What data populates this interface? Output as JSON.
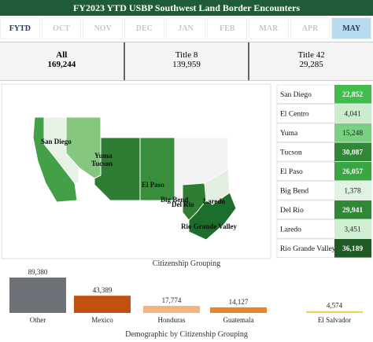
{
  "header": {
    "title": "FY2023 YTD USBP Southwest Land Border Encounters"
  },
  "tabs": [
    "FYTD",
    "OCT",
    "NOV",
    "DEC",
    "JAN",
    "FEB",
    "MAR",
    "APR",
    "MAY"
  ],
  "selected_tab": "MAY",
  "summary": [
    {
      "label": "All",
      "value": "169,244"
    },
    {
      "label": "Title 8",
      "value": "139,959"
    },
    {
      "label": "Title 42",
      "value": "29,285"
    }
  ],
  "sectors": {
    "names": [
      "San Diego",
      "El Centro",
      "Yuma",
      "Tucson",
      "El Paso",
      "Big Bend",
      "Del Rio",
      "Laredo",
      "Rio Grande Valley"
    ],
    "values": [
      22852,
      4041,
      15248,
      30087,
      26057,
      1378,
      29941,
      3451,
      36189
    ],
    "value_labels": [
      "22,852",
      "4,041",
      "15,248",
      "30,087",
      "26,057",
      "1,378",
      "29,941",
      "3,451",
      "36,189"
    ]
  },
  "chart_data": {
    "type": "bar",
    "title": "Citizenship Grouping",
    "x_label": "Demographic by Citizenship Grouping",
    "categories": [
      "Other",
      "Mexico",
      "Honduras",
      "Guatemala",
      "El Salvador"
    ],
    "values": [
      89380,
      43389,
      17774,
      14127,
      4574
    ],
    "value_labels": [
      "89,380",
      "43,389",
      "17,774",
      "14,127",
      "4,574"
    ],
    "colors": [
      "#6d7178",
      "#c2500e",
      "#f3b37d",
      "#e8862e",
      "#f6d14a"
    ]
  }
}
